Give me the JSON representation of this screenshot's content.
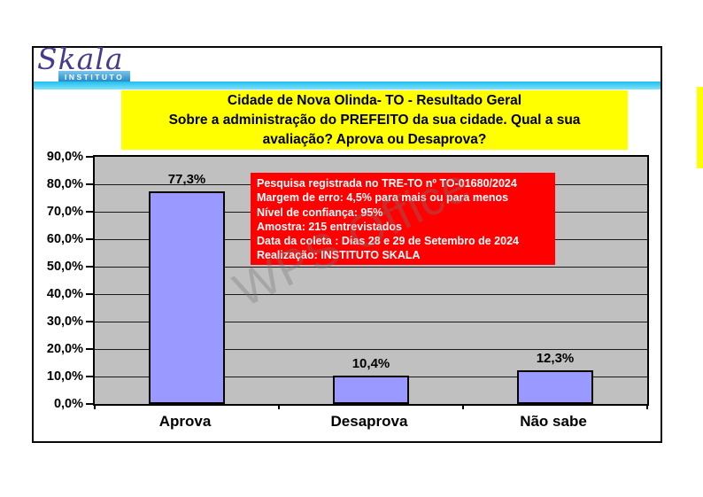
{
  "logo": {
    "name": "Skala",
    "subtitle": "INSTITUTO"
  },
  "title": {
    "bg_color": "#FFFF00",
    "lines": [
      "Cidade de Nova Olinda- TO - Resultado Geral",
      "Sobre a administração do PREFEITO da sua cidade. Qual a sua",
      "avaliação? Aprova ou Desaprova?"
    ]
  },
  "info_box": {
    "bg_color": "#FF0000",
    "text_color": "#FFFFFF",
    "lines": [
      "Pesquisa registrada no TRE-TO nº TO-01680/2024",
      "Margem de erro: 4,5% para mais ou para menos",
      "Nível de confiança: 95%",
      "Amostra: 215 entrevistados",
      "Data da coleta : Dias 28 e 29 de Setembro de 2024",
      "Realização: INSTITUTO SKALA"
    ]
  },
  "watermark": {
    "text": "WPS Office"
  },
  "chart_data": {
    "type": "bar",
    "categories": [
      "Aprova",
      "Desaprova",
      "Não sabe"
    ],
    "values": [
      77.3,
      10.4,
      12.3
    ],
    "value_labels": [
      "77,3%",
      "10,4%",
      "12,3%"
    ],
    "xlabel": "",
    "ylabel": "",
    "ylim": [
      0,
      90
    ],
    "y_tick_values": [
      0,
      10,
      20,
      30,
      40,
      50,
      60,
      70,
      80,
      90
    ],
    "y_tick_labels": [
      "0,0%",
      "10,0%",
      "20,0%",
      "30,0%",
      "40,0%",
      "50,0%",
      "60,0%",
      "70,0%",
      "80,0%",
      "90,0%"
    ],
    "grid": true,
    "legend": false,
    "bar_color": "#9999FF",
    "bar_border": "#000000",
    "plot_bg": "#C0C0C0"
  }
}
